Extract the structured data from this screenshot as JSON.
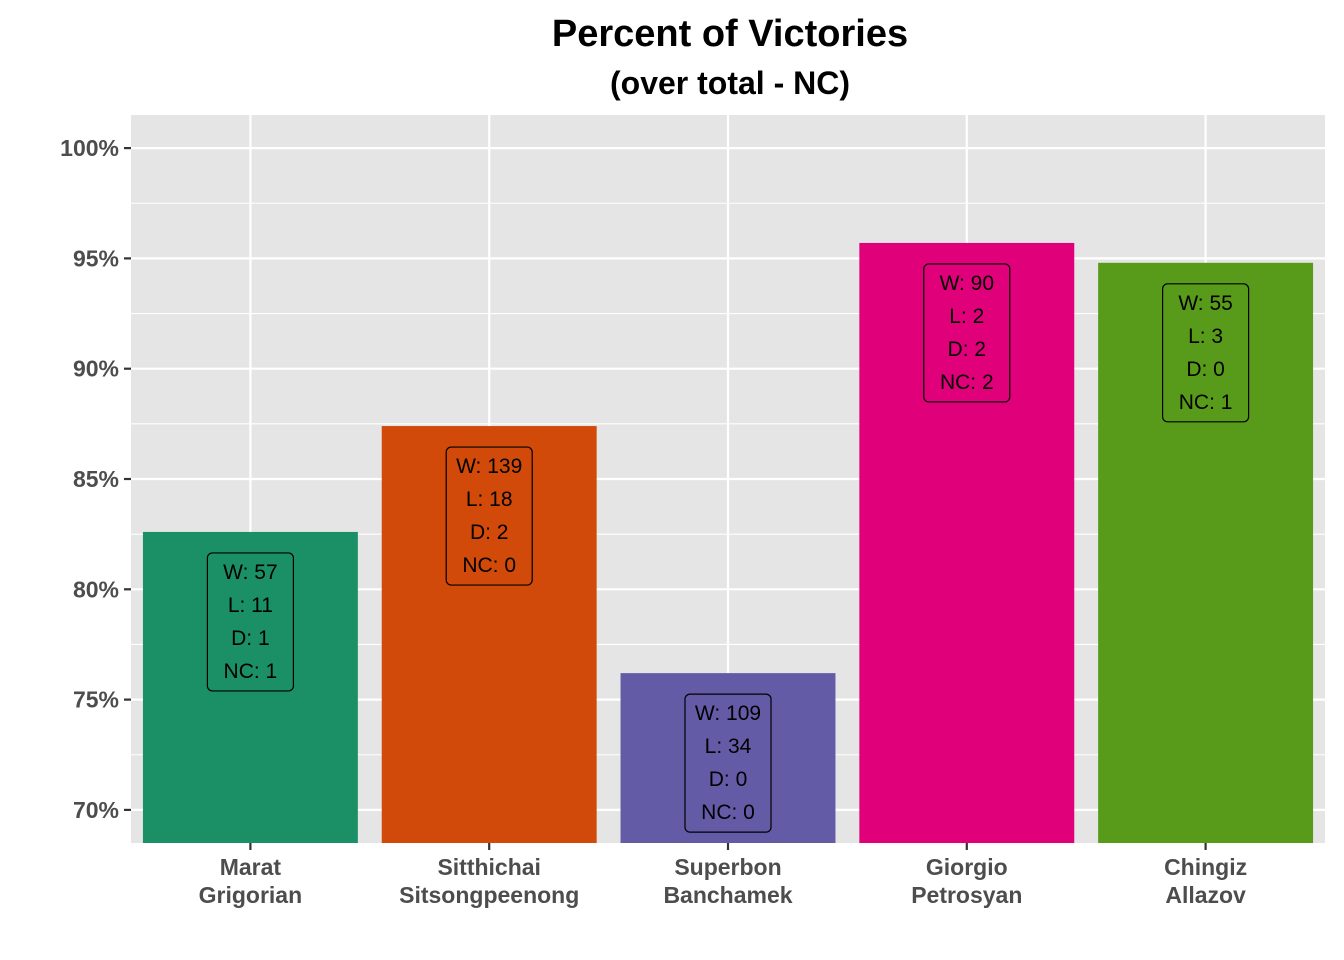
{
  "chart_data": {
    "type": "bar",
    "title": "Percent of Victories",
    "subtitle": "(over total - NC)",
    "xlabel": "",
    "ylabel": "",
    "categories": [
      [
        "Marat",
        "Grigorian"
      ],
      [
        "Sitthichai",
        "Sitsongpeenong"
      ],
      [
        "Superbon",
        "Banchamek"
      ],
      [
        "Giorgio",
        "Petrosyan"
      ],
      [
        "Chingiz",
        "Allazov"
      ]
    ],
    "values": [
      82.6,
      87.4,
      76.2,
      95.7,
      94.8
    ],
    "colors": [
      "#1b9066",
      "#d14a09",
      "#635ba6",
      "#e0007a",
      "#589a1a"
    ],
    "box_labels": [
      [
        "W: 57",
        "L: 11",
        "D: 1",
        "NC: 1"
      ],
      [
        "W: 139",
        "L: 18",
        "D: 2",
        "NC: 0"
      ],
      [
        "W: 109",
        "L: 34",
        "D: 0",
        "NC: 0"
      ],
      [
        "W: 90",
        "L: 2",
        "D: 2",
        "NC: 2"
      ],
      [
        "W: 55",
        "L: 3",
        "D: 0",
        "NC: 1"
      ]
    ],
    "yticks": [
      70,
      75,
      80,
      85,
      90,
      95,
      100
    ],
    "ytick_labels": [
      "70%",
      "75%",
      "80%",
      "85%",
      "90%",
      "95%",
      "100%"
    ],
    "ylim": [
      68.5,
      101.5
    ],
    "grid": true,
    "legend": "none",
    "panel_background": "#e5e5e5",
    "grid_color": "#ffffff"
  }
}
